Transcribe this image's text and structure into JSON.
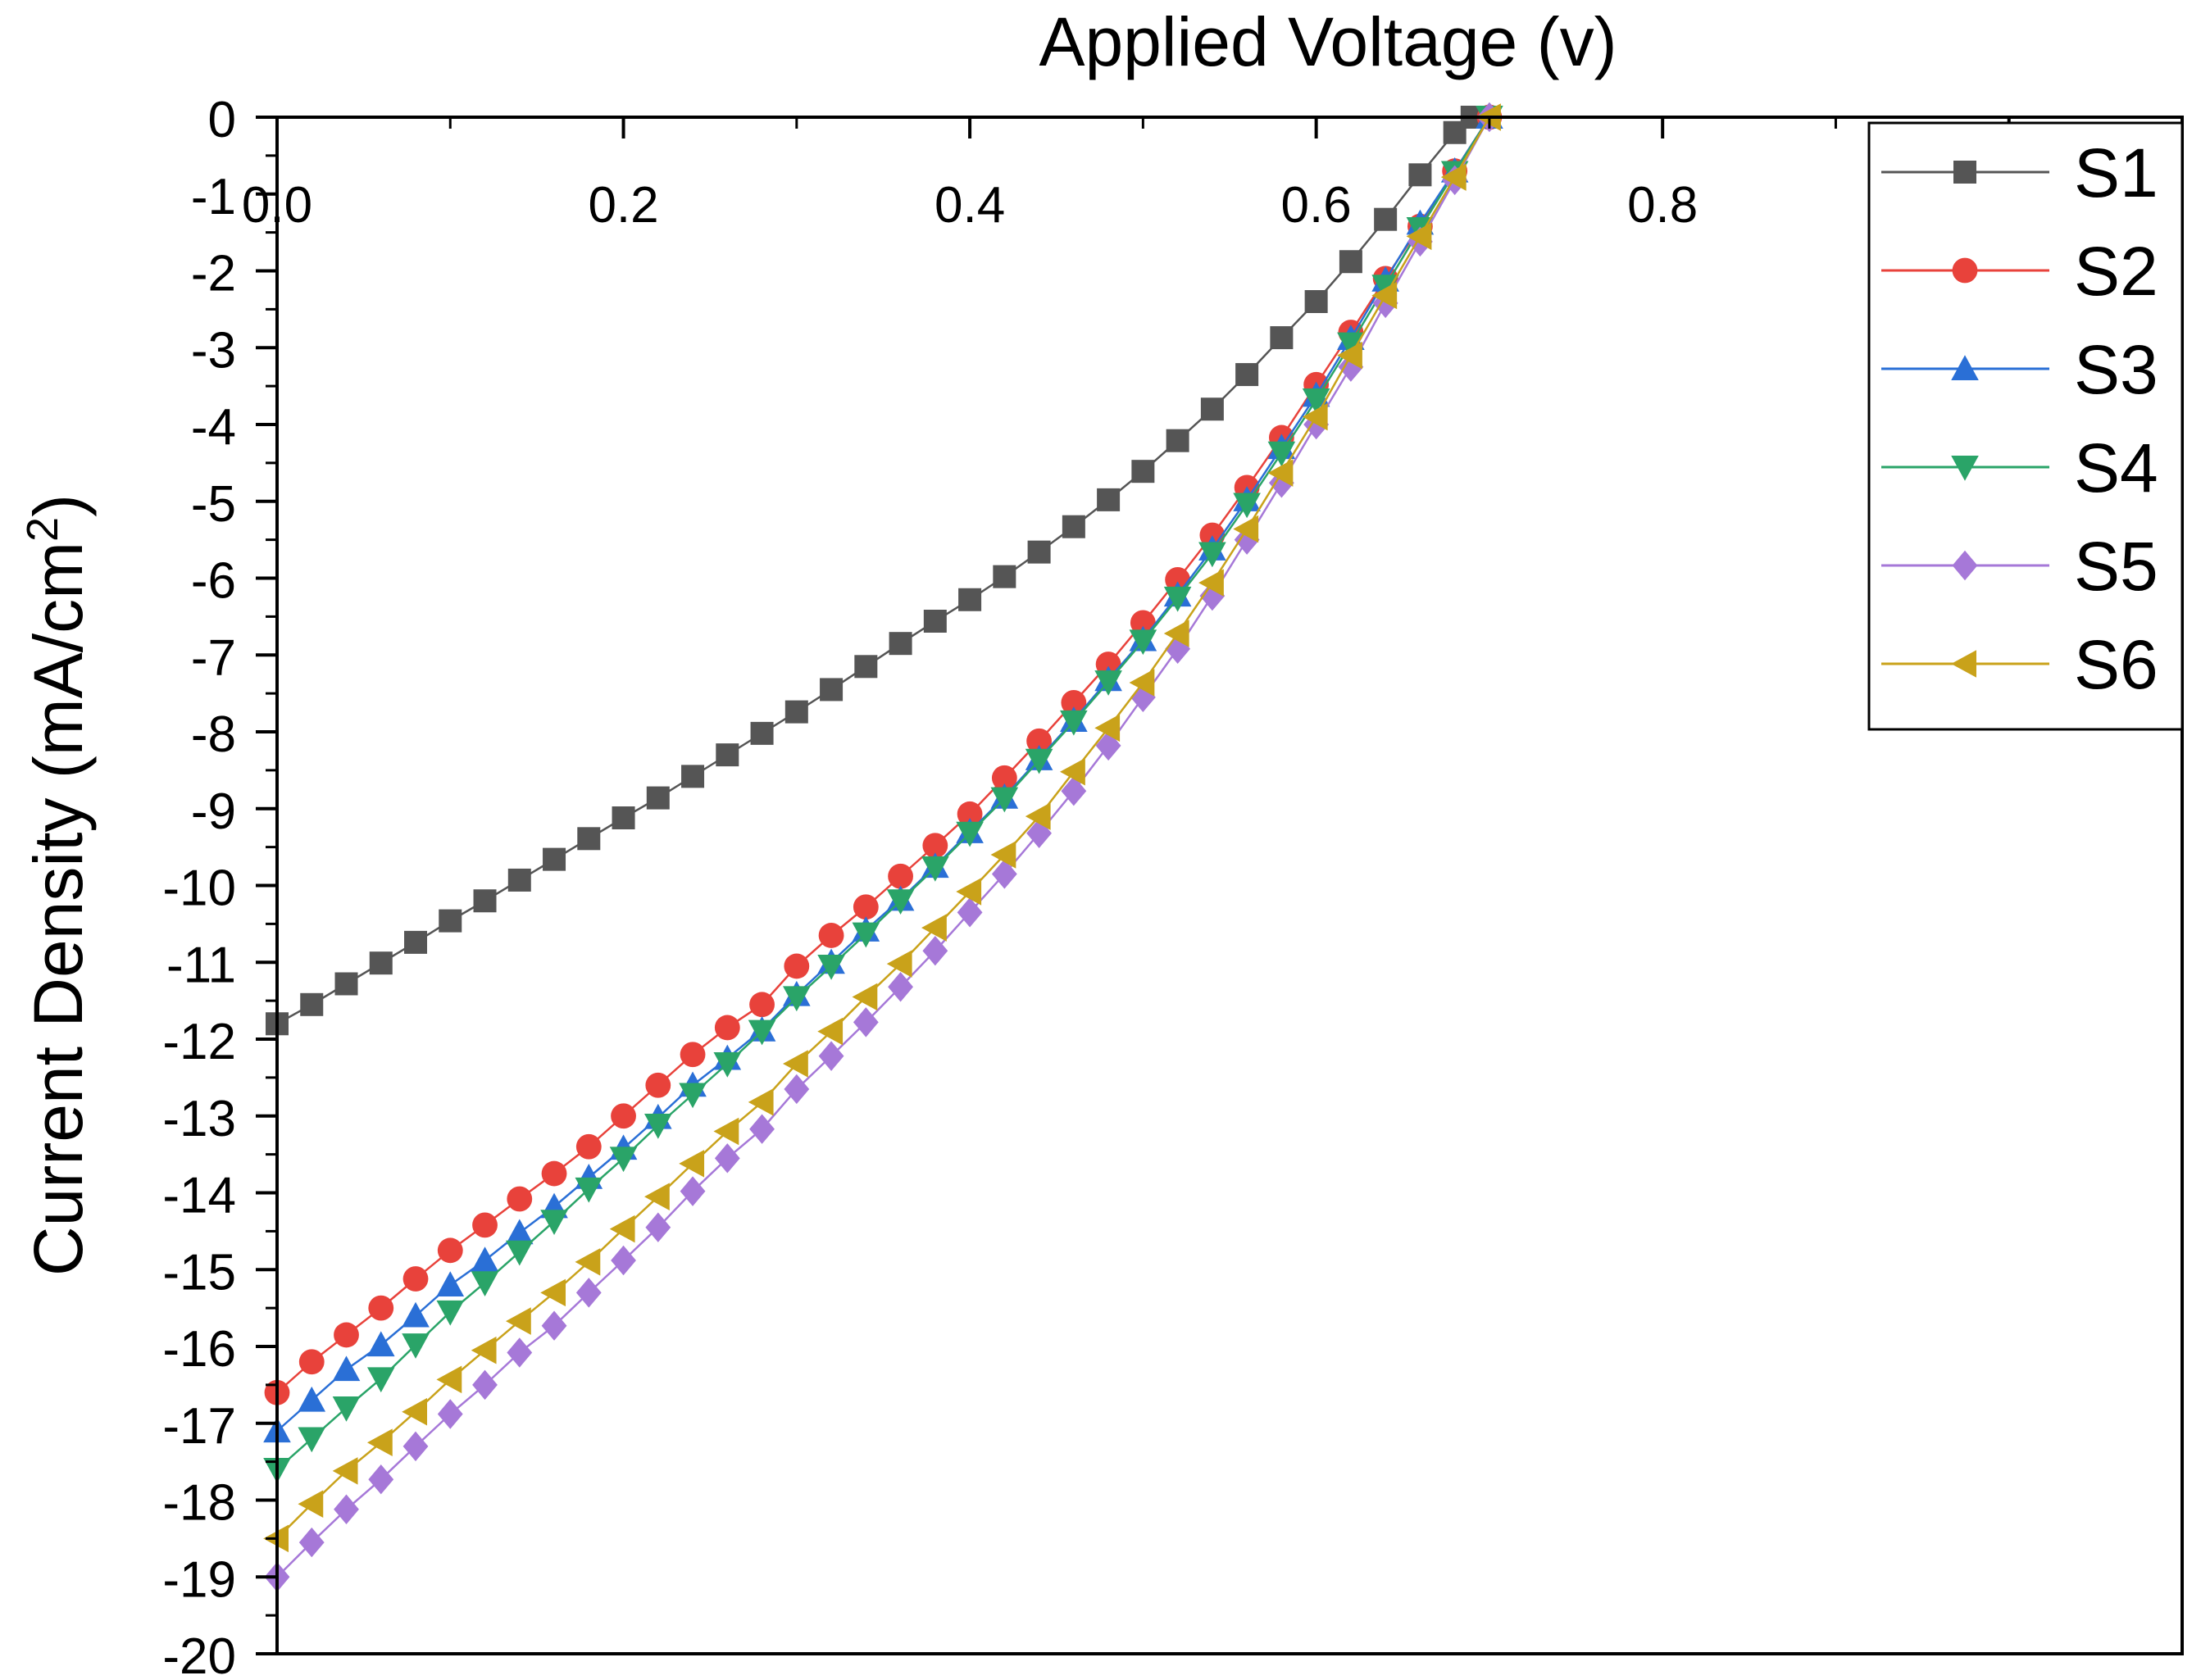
{
  "chart_data": {
    "type": "line",
    "title": "",
    "xlabel": "Applied Voltage (v)",
    "ylabel_main": "Current Density (mA/cm",
    "ylabel_sup": "2",
    "ylabel_close": ")",
    "xlim": [
      0,
      1.1
    ],
    "ylim": [
      -20,
      0
    ],
    "x_ticks": [
      0.0,
      0.2,
      0.4,
      0.6,
      0.8
    ],
    "x_tick_labels": [
      "0.0",
      "0.2",
      "0.4",
      "0.6",
      "0.8"
    ],
    "y_ticks": [
      0,
      -1,
      -2,
      -3,
      -4,
      -5,
      -6,
      -7,
      -8,
      -9,
      -10,
      -11,
      -12,
      -13,
      -14,
      -15,
      -16,
      -17,
      -18,
      -19,
      -20
    ],
    "y_tick_labels": [
      "0",
      "-1",
      "-2",
      "-3",
      "-4",
      "-5",
      "-6",
      "-7",
      "-8",
      "-9",
      "-10",
      "-11",
      "-12",
      "-13",
      "-14",
      "-15",
      "-16",
      "-17",
      "-18",
      "-19",
      "-20"
    ],
    "x_axis_position": "top",
    "legend_position": "top-right",
    "series": [
      {
        "name": "S1",
        "color": "#555555",
        "marker": "square",
        "x": [
          0,
          0.02,
          0.04,
          0.06,
          0.08,
          0.1,
          0.12,
          0.14,
          0.16,
          0.18,
          0.2,
          0.22,
          0.24,
          0.26,
          0.28,
          0.3,
          0.32,
          0.34,
          0.36,
          0.38,
          0.4,
          0.42,
          0.44,
          0.46,
          0.48,
          0.5,
          0.52,
          0.54,
          0.56,
          0.58,
          0.6,
          0.62,
          0.64,
          0.66,
          0.68,
          0.69
        ],
        "y": [
          -11.8,
          -11.55,
          -11.28,
          -11.01,
          -10.74,
          -10.46,
          -10.2,
          -9.93,
          -9.66,
          -9.39,
          -9.12,
          -8.86,
          -8.58,
          -8.3,
          -8.02,
          -7.74,
          -7.45,
          -7.15,
          -6.85,
          -6.56,
          -6.28,
          -5.98,
          -5.66,
          -5.33,
          -4.98,
          -4.61,
          -4.21,
          -3.8,
          -3.35,
          -2.87,
          -2.4,
          -1.88,
          -1.33,
          -0.75,
          -0.2,
          0
        ]
      },
      {
        "name": "S2",
        "color": "#e8423b",
        "marker": "circle",
        "x": [
          0,
          0.02,
          0.04,
          0.06,
          0.08,
          0.1,
          0.12,
          0.14,
          0.16,
          0.18,
          0.2,
          0.22,
          0.24,
          0.26,
          0.28,
          0.3,
          0.32,
          0.34,
          0.36,
          0.38,
          0.4,
          0.42,
          0.44,
          0.46,
          0.48,
          0.5,
          0.52,
          0.54,
          0.56,
          0.58,
          0.6,
          0.62,
          0.64,
          0.66,
          0.68,
          0.7
        ],
        "y": [
          -16.6,
          -16.2,
          -15.85,
          -15.5,
          -15.12,
          -14.75,
          -14.42,
          -14.08,
          -13.75,
          -13.4,
          -13.0,
          -12.6,
          -12.2,
          -11.85,
          -11.55,
          -11.05,
          -10.65,
          -10.28,
          -9.88,
          -9.48,
          -9.07,
          -8.6,
          -8.12,
          -7.62,
          -7.12,
          -6.58,
          -6.02,
          -5.44,
          -4.82,
          -4.17,
          -3.48,
          -2.8,
          -2.1,
          -1.42,
          -0.7,
          0
        ]
      },
      {
        "name": "S3",
        "color": "#2a6fd6",
        "marker": "triangle-up",
        "x": [
          0,
          0.02,
          0.04,
          0.06,
          0.08,
          0.1,
          0.12,
          0.14,
          0.16,
          0.18,
          0.2,
          0.22,
          0.24,
          0.26,
          0.28,
          0.3,
          0.32,
          0.34,
          0.36,
          0.38,
          0.4,
          0.42,
          0.44,
          0.46,
          0.48,
          0.5,
          0.52,
          0.54,
          0.56,
          0.58,
          0.6,
          0.62,
          0.64,
          0.66,
          0.68,
          0.7
        ],
        "y": [
          -17.1,
          -16.7,
          -16.3,
          -15.98,
          -15.6,
          -15.2,
          -14.88,
          -14.52,
          -14.18,
          -13.8,
          -13.42,
          -13.02,
          -12.6,
          -12.25,
          -11.88,
          -11.42,
          -11.0,
          -10.58,
          -10.18,
          -9.75,
          -9.3,
          -8.85,
          -8.35,
          -7.85,
          -7.32,
          -6.8,
          -6.22,
          -5.62,
          -4.98,
          -4.3,
          -3.62,
          -2.88,
          -2.12,
          -1.38,
          -0.7,
          0
        ]
      },
      {
        "name": "S4",
        "color": "#2aa468",
        "marker": "triangle-down",
        "x": [
          0,
          0.02,
          0.04,
          0.06,
          0.08,
          0.1,
          0.12,
          0.14,
          0.16,
          0.18,
          0.2,
          0.22,
          0.24,
          0.26,
          0.28,
          0.3,
          0.32,
          0.34,
          0.36,
          0.38,
          0.4,
          0.42,
          0.44,
          0.46,
          0.48,
          0.5,
          0.52,
          0.54,
          0.56,
          0.58,
          0.6,
          0.62,
          0.64,
          0.66,
          0.68,
          0.7
        ],
        "y": [
          -17.6,
          -17.2,
          -16.8,
          -16.42,
          -15.98,
          -15.55,
          -15.17,
          -14.77,
          -14.37,
          -13.95,
          -13.55,
          -13.12,
          -12.72,
          -12.32,
          -11.9,
          -11.46,
          -11.05,
          -10.63,
          -10.2,
          -9.77,
          -9.32,
          -8.87,
          -8.37,
          -7.87,
          -7.35,
          -6.82,
          -6.26,
          -5.68,
          -5.04,
          -4.37,
          -3.68,
          -2.95,
          -2.2,
          -1.45,
          -0.72,
          0
        ]
      },
      {
        "name": "S5",
        "color": "#a678d8",
        "marker": "diamond",
        "x": [
          0,
          0.02,
          0.04,
          0.06,
          0.08,
          0.1,
          0.12,
          0.14,
          0.16,
          0.18,
          0.2,
          0.22,
          0.24,
          0.26,
          0.28,
          0.3,
          0.32,
          0.34,
          0.36,
          0.38,
          0.4,
          0.42,
          0.44,
          0.46,
          0.48,
          0.5,
          0.52,
          0.54,
          0.56,
          0.58,
          0.6,
          0.62,
          0.64,
          0.66,
          0.68,
          0.7
        ],
        "y": [
          -19.0,
          -18.55,
          -18.12,
          -17.73,
          -17.3,
          -16.88,
          -16.5,
          -16.08,
          -15.73,
          -15.3,
          -14.88,
          -14.45,
          -13.98,
          -13.55,
          -13.17,
          -12.65,
          -12.22,
          -11.78,
          -11.32,
          -10.85,
          -10.35,
          -9.85,
          -9.32,
          -8.77,
          -8.18,
          -7.55,
          -6.92,
          -6.23,
          -5.5,
          -4.76,
          -4.0,
          -3.25,
          -2.42,
          -1.62,
          -0.82,
          0
        ]
      },
      {
        "name": "S6",
        "color": "#c9a21a",
        "marker": "triangle-left",
        "x": [
          0,
          0.02,
          0.04,
          0.06,
          0.08,
          0.1,
          0.12,
          0.14,
          0.16,
          0.18,
          0.2,
          0.22,
          0.24,
          0.26,
          0.28,
          0.3,
          0.32,
          0.34,
          0.36,
          0.38,
          0.4,
          0.42,
          0.44,
          0.46,
          0.48,
          0.5,
          0.52,
          0.54,
          0.56,
          0.58,
          0.6,
          0.62,
          0.64,
          0.66,
          0.68,
          0.7
        ],
        "y": [
          -18.5,
          -18.05,
          -17.62,
          -17.25,
          -16.85,
          -16.43,
          -16.05,
          -15.67,
          -15.3,
          -14.9,
          -14.47,
          -14.05,
          -13.62,
          -13.2,
          -12.82,
          -12.32,
          -11.9,
          -11.45,
          -11.02,
          -10.55,
          -10.08,
          -9.6,
          -9.1,
          -8.52,
          -7.95,
          -7.36,
          -6.72,
          -6.06,
          -5.36,
          -4.63,
          -3.9,
          -3.1,
          -2.32,
          -1.55,
          -0.78,
          0
        ]
      }
    ]
  }
}
